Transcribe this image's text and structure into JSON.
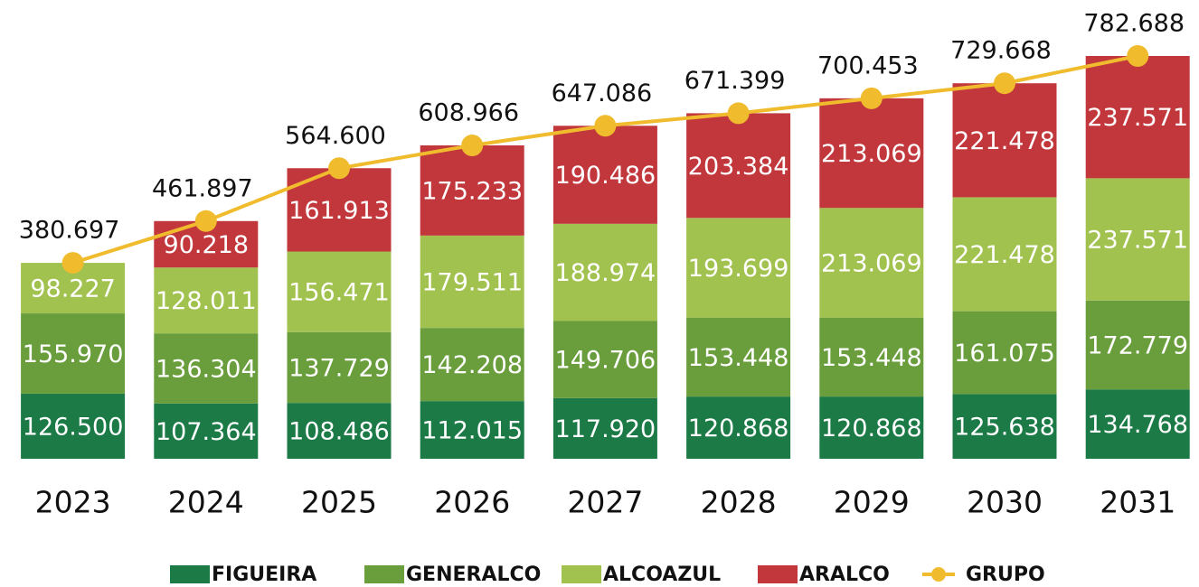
{
  "chart_data": {
    "type": "stacked-bar-line",
    "categories": [
      "2023",
      "2024",
      "2025",
      "2026",
      "2027",
      "2028",
      "2029",
      "2030",
      "2031"
    ],
    "series": [
      {
        "name": "FIGUEIRA",
        "color": "#1b7a46",
        "values": [
          126500,
          107364,
          108486,
          112015,
          117920,
          120868,
          120868,
          125638,
          134768
        ],
        "value_labels": [
          "126.500",
          "107.364",
          "108.486",
          "112.015",
          "117.920",
          "120.868",
          "120.868",
          "125.638",
          "134.768"
        ]
      },
      {
        "name": "GENERALCO",
        "color": "#6a9e3d",
        "values": [
          155970,
          136304,
          137729,
          142208,
          149706,
          153448,
          153448,
          161075,
          172779
        ],
        "value_labels": [
          "155.970",
          "136.304",
          "137.729",
          "142.208",
          "149.706",
          "153.448",
          "153.448",
          "161.075",
          "172.779"
        ]
      },
      {
        "name": "ALCOAZUL",
        "color": "#a2c250",
        "values": [
          98227,
          128011,
          156471,
          179511,
          188974,
          193699,
          213069,
          221478,
          237571
        ],
        "value_labels": [
          "98.227",
          "128.011",
          "156.471",
          "179.511",
          "188.974",
          "193.699",
          "213.069",
          "221.478",
          "237.571"
        ]
      },
      {
        "name": "ARALCO",
        "color": "#c1373b",
        "values": [
          null,
          90218,
          161913,
          175233,
          190486,
          203384,
          213069,
          221478,
          237571
        ],
        "value_labels": [
          null,
          "90.218",
          "161.913",
          "175.233",
          "190.486",
          "203.384",
          "213.069",
          "221.478",
          "237.571"
        ]
      },
      {
        "name": "GRUPO",
        "color": "#f0bc2e",
        "type": "line",
        "values": [
          380697,
          461897,
          564600,
          608966,
          647086,
          671399,
          700453,
          729668,
          782688
        ],
        "value_labels": [
          "380.697",
          "461.897",
          "564.600",
          "608.966",
          "647.086",
          "671.399",
          "700.453",
          "729.668",
          "782.688"
        ]
      }
    ]
  }
}
